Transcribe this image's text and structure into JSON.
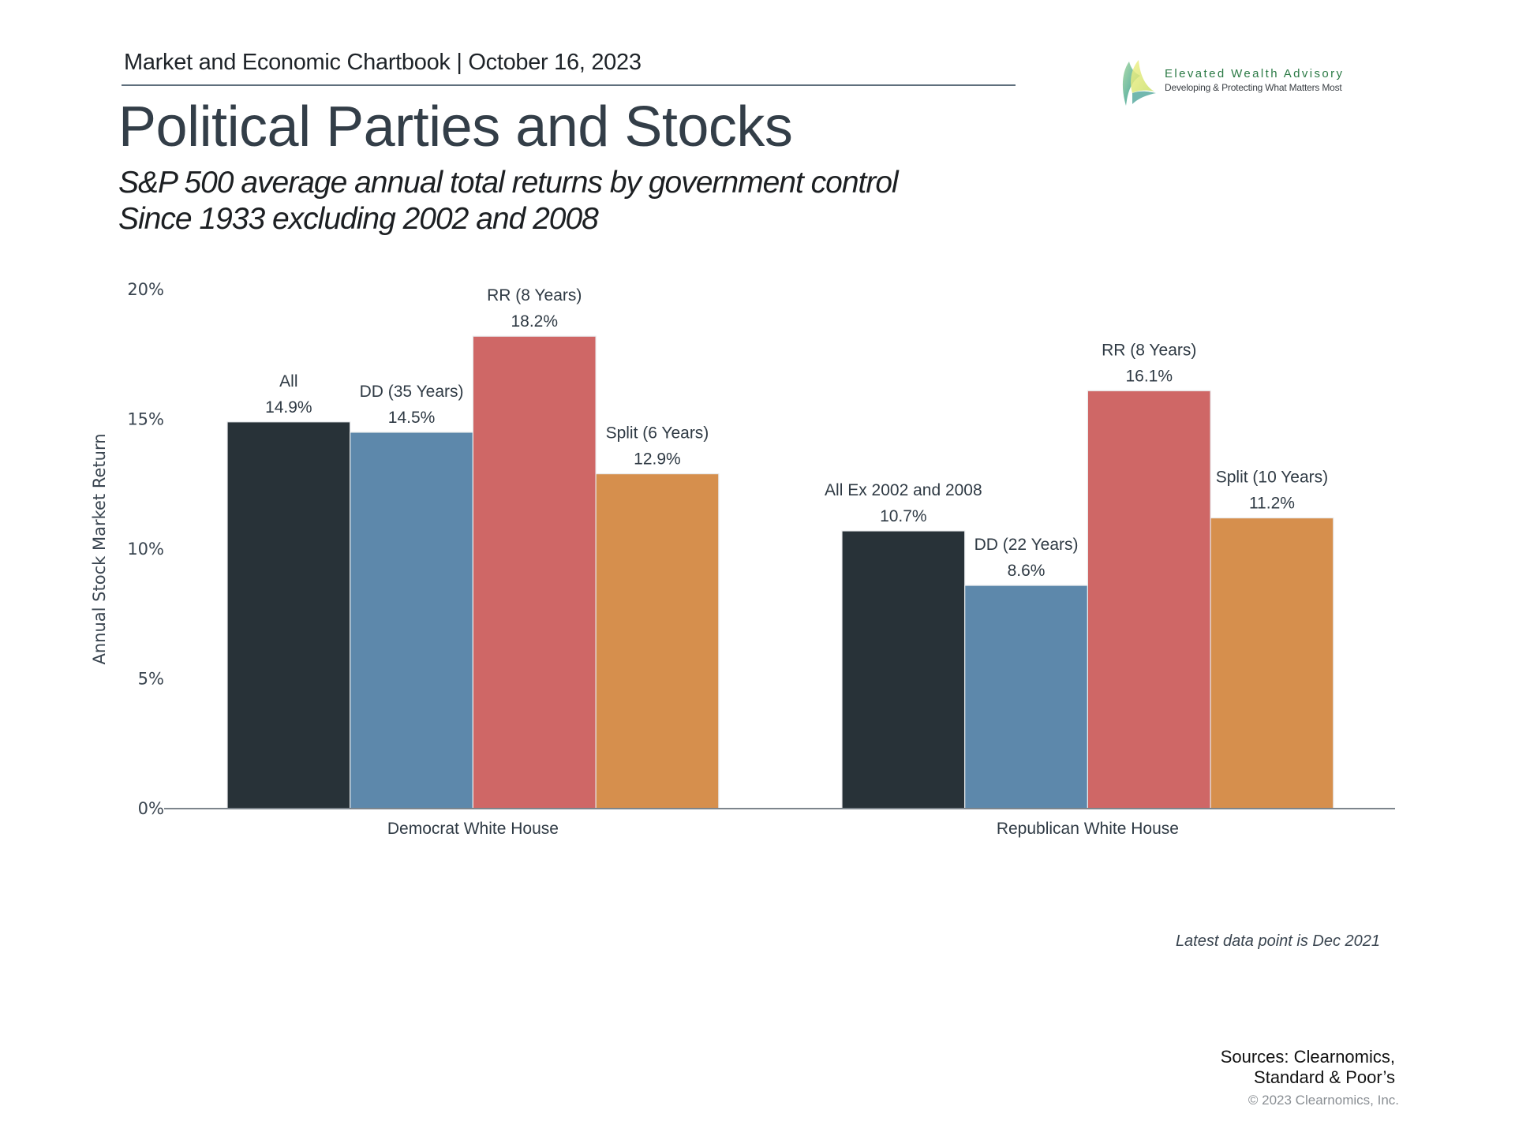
{
  "header": {
    "text": "Market and Economic Chartbook | October 16, 2023"
  },
  "title": "Political Parties and Stocks",
  "subtitle": {
    "line1": "S&P 500 average annual total returns by government control",
    "line2": "Since 1933 excluding 2002 and 2008"
  },
  "logo": {
    "icon": "leaf-sail-logo-icon",
    "name": "Elevated Wealth Advisory",
    "tagline": "Developing & Protecting What Matters Most"
  },
  "colors": {
    "all": "#283238",
    "dd": "#5D88AB",
    "rr": "#CF6766",
    "split": "#D68F4D",
    "axis": "#7d858c"
  },
  "chart_data": {
    "type": "bar",
    "title": "",
    "xlabel": "",
    "ylabel": "Annual Stock Market Return",
    "ylim": [
      0,
      20
    ],
    "yticks": [
      0,
      5,
      10,
      15,
      20
    ],
    "ytick_labels": [
      "0%",
      "5%",
      "10%",
      "15%",
      "20%"
    ],
    "grid": false,
    "legend": "none (bars individually labeled)",
    "categories": [
      "Democrat White House",
      "Republican White House"
    ],
    "groups": [
      {
        "category": "Democrat White House",
        "bars": [
          {
            "key": "all",
            "label": "All",
            "value": 14.9,
            "value_label": "14.9%"
          },
          {
            "key": "dd",
            "label": "DD (35 Years)",
            "value": 14.5,
            "value_label": "14.5%"
          },
          {
            "key": "rr",
            "label": "RR (8 Years)",
            "value": 18.2,
            "value_label": "18.2%"
          },
          {
            "key": "split",
            "label": "Split (6 Years)",
            "value": 12.9,
            "value_label": "12.9%"
          }
        ]
      },
      {
        "category": "Republican White House",
        "bars": [
          {
            "key": "all",
            "label": "All Ex 2002 and 2008",
            "value": 10.7,
            "value_label": "10.7%"
          },
          {
            "key": "dd",
            "label": "DD (22 Years)",
            "value": 8.6,
            "value_label": "8.6%"
          },
          {
            "key": "rr",
            "label": "RR (8 Years)",
            "value": 16.1,
            "value_label": "16.1%"
          },
          {
            "key": "split",
            "label": "Split (10 Years)",
            "value": 11.2,
            "value_label": "11.2%"
          }
        ]
      }
    ]
  },
  "footer": {
    "latest": "Latest data point is Dec 2021",
    "sources_line1": "Sources: Clearnomics,",
    "sources_line2": "Standard & Poor’s",
    "copyright": "© 2023 Clearnomics, Inc."
  }
}
